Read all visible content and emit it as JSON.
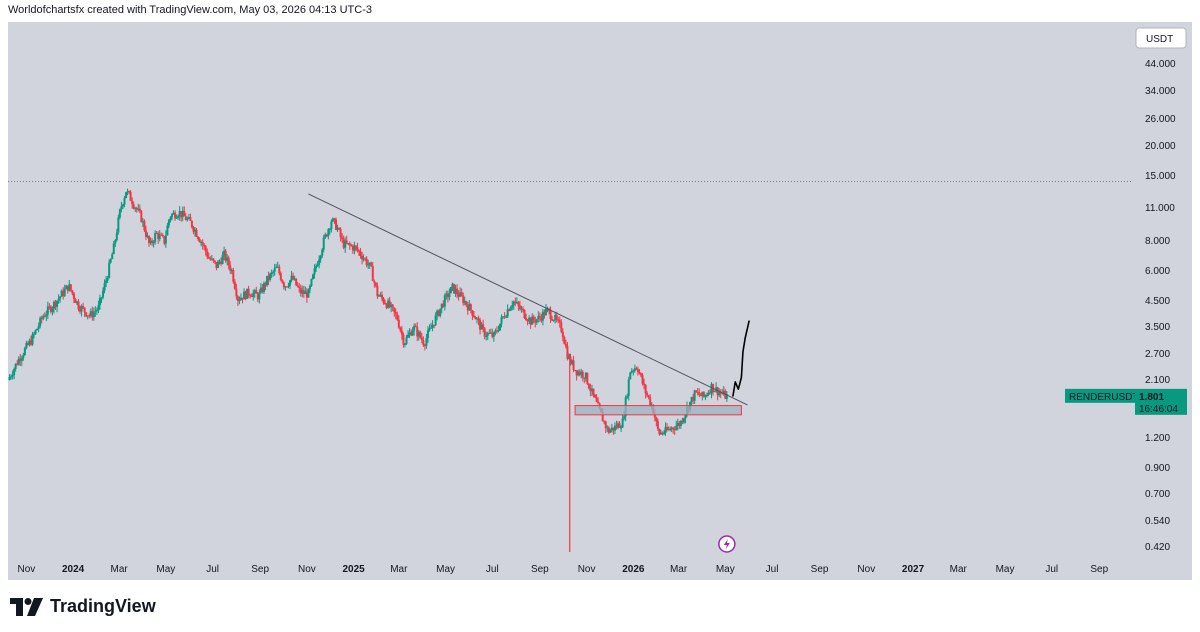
{
  "header": {
    "text": "Worldofchartsfx created with TradingView.com, May 03, 2026 04:13 UTC-3"
  },
  "brand": {
    "name": "TradingView",
    "logo_icon": "tradingview-logo-icon"
  },
  "chart_data": {
    "type": "candlestick",
    "symbol": "RENDERUSDT",
    "currency": "USDT",
    "scale": "log",
    "ylim": [
      0.4,
      60
    ],
    "y_ticks": [
      "44.000",
      "34.000",
      "26.000",
      "20.000",
      "15.000",
      "11.000",
      "8.000",
      "6.000",
      "4.500",
      "3.500",
      "2.700",
      "2.100",
      "1.200",
      "0.900",
      "0.700",
      "0.540",
      "0.420"
    ],
    "x_ticks": [
      {
        "label": "Nov",
        "date": "2023-11",
        "bold": false
      },
      {
        "label": "2024",
        "date": "2024-01",
        "bold": true
      },
      {
        "label": "Mar",
        "date": "2024-03",
        "bold": false
      },
      {
        "label": "May",
        "date": "2024-05",
        "bold": false
      },
      {
        "label": "Jul",
        "date": "2024-07",
        "bold": false
      },
      {
        "label": "Sep",
        "date": "2024-09",
        "bold": false
      },
      {
        "label": "Nov",
        "date": "2024-11",
        "bold": false
      },
      {
        "label": "2025",
        "date": "2025-01",
        "bold": true
      },
      {
        "label": "Mar",
        "date": "2025-03",
        "bold": false
      },
      {
        "label": "May",
        "date": "2025-05",
        "bold": false
      },
      {
        "label": "Jul",
        "date": "2025-07",
        "bold": false
      },
      {
        "label": "Sep",
        "date": "2025-09",
        "bold": false
      },
      {
        "label": "Nov",
        "date": "2025-11",
        "bold": false
      },
      {
        "label": "2026",
        "date": "2026-01",
        "bold": true
      },
      {
        "label": "Mar",
        "date": "2026-03",
        "bold": false
      },
      {
        "label": "May",
        "date": "2026-05",
        "bold": false
      },
      {
        "label": "Jul",
        "date": "2026-07",
        "bold": false
      },
      {
        "label": "Sep",
        "date": "2026-09",
        "bold": false
      },
      {
        "label": "Nov",
        "date": "2026-11",
        "bold": false
      },
      {
        "label": "2027",
        "date": "2027-01",
        "bold": true
      },
      {
        "label": "Mar",
        "date": "2027-03",
        "bold": false
      },
      {
        "label": "May",
        "date": "2027-05",
        "bold": false
      },
      {
        "label": "Jul",
        "date": "2027-07",
        "bold": false
      },
      {
        "label": "Sep",
        "date": "2027-09",
        "bold": false
      }
    ],
    "x_range": [
      "2023-10-08",
      "2027-10-15"
    ],
    "price_path": [
      [
        "2023-10-10",
        2.1
      ],
      [
        "2023-10-25",
        2.6
      ],
      [
        "2023-11-10",
        3.1
      ],
      [
        "2023-11-25",
        3.9
      ],
      [
        "2023-12-10",
        4.4
      ],
      [
        "2023-12-28",
        5.2
      ],
      [
        "2024-01-10",
        4.3
      ],
      [
        "2024-01-25",
        3.9
      ],
      [
        "2024-02-05",
        4.2
      ],
      [
        "2024-02-15",
        5.5
      ],
      [
        "2024-02-25",
        7.5
      ],
      [
        "2024-03-05",
        11.0
      ],
      [
        "2024-03-12",
        13.0
      ],
      [
        "2024-03-20",
        11.8
      ],
      [
        "2024-04-01",
        10.0
      ],
      [
        "2024-04-12",
        7.6
      ],
      [
        "2024-04-20",
        8.6
      ],
      [
        "2024-05-01",
        8.0
      ],
      [
        "2024-05-08",
        10.2
      ],
      [
        "2024-05-20",
        10.6
      ],
      [
        "2024-06-05",
        9.5
      ],
      [
        "2024-06-18",
        8.0
      ],
      [
        "2024-06-28",
        6.8
      ],
      [
        "2024-07-08",
        6.3
      ],
      [
        "2024-07-18",
        7.0
      ],
      [
        "2024-07-28",
        6.0
      ],
      [
        "2024-08-05",
        4.6
      ],
      [
        "2024-08-20",
        4.9
      ],
      [
        "2024-09-01",
        4.7
      ],
      [
        "2024-09-12",
        5.5
      ],
      [
        "2024-09-25",
        6.2
      ],
      [
        "2024-10-05",
        5.2
      ],
      [
        "2024-10-15",
        5.6
      ],
      [
        "2024-10-25",
        4.9
      ],
      [
        "2024-11-05",
        4.8
      ],
      [
        "2024-11-15",
        6.3
      ],
      [
        "2024-11-25",
        8.0
      ],
      [
        "2024-12-05",
        9.8
      ],
      [
        "2024-12-12",
        9.2
      ],
      [
        "2024-12-20",
        7.8
      ],
      [
        "2025-01-05",
        7.5
      ],
      [
        "2025-01-15",
        6.9
      ],
      [
        "2025-01-25",
        6.2
      ],
      [
        "2025-02-03",
        4.8
      ],
      [
        "2025-02-18",
        4.3
      ],
      [
        "2025-03-01",
        3.8
      ],
      [
        "2025-03-10",
        3.0
      ],
      [
        "2025-03-22",
        3.5
      ],
      [
        "2025-04-05",
        3.0
      ],
      [
        "2025-04-18",
        3.7
      ],
      [
        "2025-05-01",
        4.5
      ],
      [
        "2025-05-12",
        5.1
      ],
      [
        "2025-05-25",
        4.6
      ],
      [
        "2025-06-08",
        4.0
      ],
      [
        "2025-06-22",
        3.3
      ],
      [
        "2025-07-05",
        3.2
      ],
      [
        "2025-07-18",
        3.9
      ],
      [
        "2025-07-30",
        4.5
      ],
      [
        "2025-08-10",
        4.1
      ],
      [
        "2025-08-22",
        3.7
      ],
      [
        "2025-09-02",
        3.8
      ],
      [
        "2025-09-12",
        4.1
      ],
      [
        "2025-09-22",
        3.8
      ],
      [
        "2025-10-02",
        3.4
      ],
      [
        "2025-10-10",
        2.6
      ],
      [
        "2025-10-20",
        2.3
      ],
      [
        "2025-11-01",
        2.2
      ],
      [
        "2025-11-10",
        1.85
      ],
      [
        "2025-11-20",
        1.55
      ],
      [
        "2025-12-01",
        1.28
      ],
      [
        "2025-12-10",
        1.33
      ],
      [
        "2025-12-20",
        1.4
      ],
      [
        "2025-12-30",
        2.3
      ],
      [
        "2026-01-08",
        2.4
      ],
      [
        "2026-01-18",
        1.9
      ],
      [
        "2026-01-28",
        1.62
      ],
      [
        "2026-02-05",
        1.25
      ],
      [
        "2026-02-15",
        1.28
      ],
      [
        "2026-02-25",
        1.34
      ],
      [
        "2026-03-05",
        1.38
      ],
      [
        "2026-03-15",
        1.62
      ],
      [
        "2026-03-25",
        1.85
      ],
      [
        "2026-04-05",
        1.78
      ],
      [
        "2026-04-15",
        1.97
      ],
      [
        "2026-04-25",
        1.87
      ],
      [
        "2026-05-03",
        1.801
      ]
    ],
    "lines": [
      {
        "name": "trendline",
        "points": [
          [
            "2024-11-03",
            12.6
          ],
          [
            "2026-05-30",
            1.65
          ]
        ],
        "color": "#50535e"
      },
      {
        "name": "prior-high-level",
        "points": [
          [
            "2023-10-08",
            14.2
          ],
          [
            "2027-10-15",
            14.2
          ]
        ],
        "dashed": true,
        "color": "#787b86"
      }
    ],
    "zones": [
      {
        "name": "support-zone",
        "x0": "2025-10-17",
        "x1": "2026-05-22",
        "y_low": 1.5,
        "y_high": 1.64,
        "fill": "#9db2bf",
        "stroke": "#f23645"
      }
    ],
    "projection": {
      "name": "hand-drawn-projection",
      "points": [
        [
          "2026-05-11",
          1.8
        ],
        [
          "2026-05-14",
          2.06
        ],
        [
          "2026-05-18",
          1.92
        ],
        [
          "2026-05-22",
          2.15
        ],
        [
          "2026-05-24",
          2.75
        ],
        [
          "2026-05-27",
          3.15
        ],
        [
          "2026-06-01",
          3.7
        ]
      ]
    },
    "wicks": [
      {
        "date": "2025-10-10",
        "low": 0.4,
        "high": 2.7
      }
    ],
    "current": {
      "symbol_label": "RENDERUSDT",
      "price": "1.801",
      "countdown": "16:46:04",
      "value": 1.801,
      "color": "#089981"
    },
    "colors": {
      "up": "#089981",
      "down": "#f23645",
      "background": "#d1d4dc"
    },
    "event_icon": "flash-icon"
  }
}
